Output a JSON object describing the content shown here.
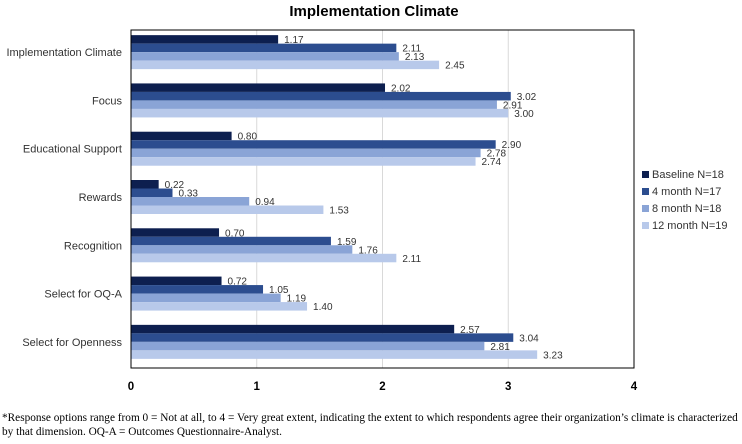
{
  "chart_data": {
    "type": "bar",
    "orientation": "horizontal",
    "title": "Implementation Climate",
    "categories": [
      "Implementation Climate",
      "Focus",
      "Educational Support",
      "Rewards",
      "Recognition",
      "Select for OQ-A",
      "Select for Openness"
    ],
    "series": [
      {
        "name": "Baseline N=18",
        "color": "#0d1f4f",
        "values": [
          1.17,
          2.02,
          0.8,
          0.22,
          0.7,
          0.72,
          2.57
        ]
      },
      {
        "name": "4 month N=17",
        "color": "#2c4d8f",
        "values": [
          2.11,
          3.02,
          2.9,
          0.33,
          1.59,
          1.05,
          3.04
        ]
      },
      {
        "name": "8 month N=18",
        "color": "#8aa4d6",
        "values": [
          2.13,
          2.91,
          2.78,
          0.94,
          1.76,
          1.19,
          2.81
        ]
      },
      {
        "name": "12 month N=19",
        "color": "#b8c9ea",
        "values": [
          2.45,
          3.0,
          2.74,
          1.53,
          2.11,
          1.4,
          3.23
        ]
      }
    ],
    "data_labels": [
      [
        "1.17",
        "2.02",
        "0.80",
        "0.22",
        "0.70",
        "0.72",
        "2.57"
      ],
      [
        "2.11",
        "3.02",
        "2.90",
        "0.33",
        "1.59",
        "1.05",
        "3.04"
      ],
      [
        "2.13",
        "2.91",
        "2.78",
        "0.94",
        "1.76",
        "1.19",
        "2.81"
      ],
      [
        "2.45",
        "3.00",
        "2.74",
        "1.53",
        "2.11",
        "1.40",
        "3.23"
      ]
    ],
    "xlim": [
      0,
      4
    ],
    "xticks": [
      "0",
      "1",
      "2",
      "3",
      "4"
    ],
    "xlabel": "",
    "ylabel": "",
    "grid": true,
    "legend_position": "right"
  },
  "footnote": "*Response options range from 0 = Not at all, to 4 = Very great extent, indicating the extent to which respondents agree their organization’s climate is characterized by that dimension. OQ-A = Outcomes Questionnaire-Analyst."
}
